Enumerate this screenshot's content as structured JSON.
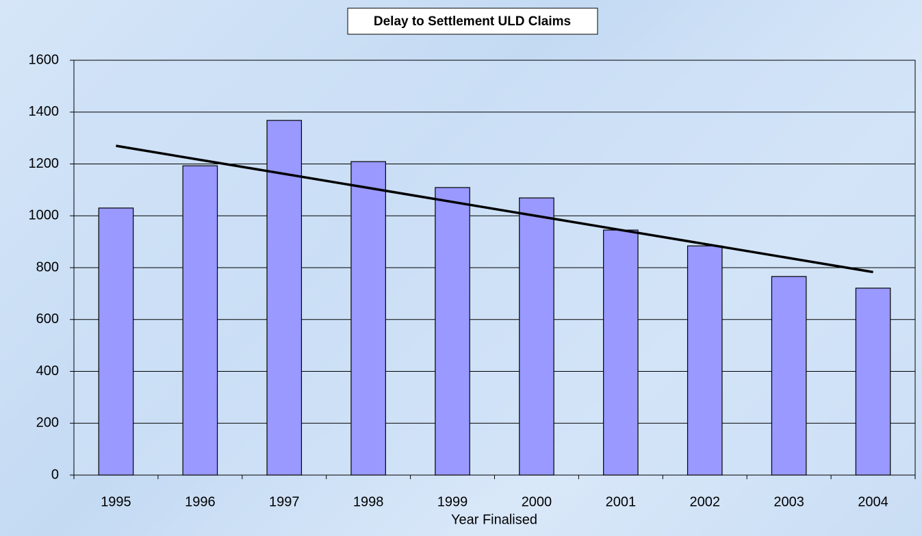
{
  "chart_data": {
    "type": "bar",
    "title": "Delay to Settlement ULD Claims",
    "x_label": "Year Finalised",
    "categories": [
      "1995",
      "1996",
      "1997",
      "1998",
      "1999",
      "2000",
      "2001",
      "2002",
      "2003",
      "2004"
    ],
    "values": [
      1030,
      1193,
      1368,
      1209,
      1109,
      1069,
      945,
      884,
      766,
      721
    ],
    "color": "#9999ff",
    "trendline": {
      "color": "#000000",
      "values": [
        1270,
        783
      ]
    },
    "ylim": [
      0,
      1600
    ],
    "yticks": [
      0,
      200,
      400,
      600,
      800,
      1000,
      1200,
      1400,
      1600
    ],
    "grid": true
  }
}
